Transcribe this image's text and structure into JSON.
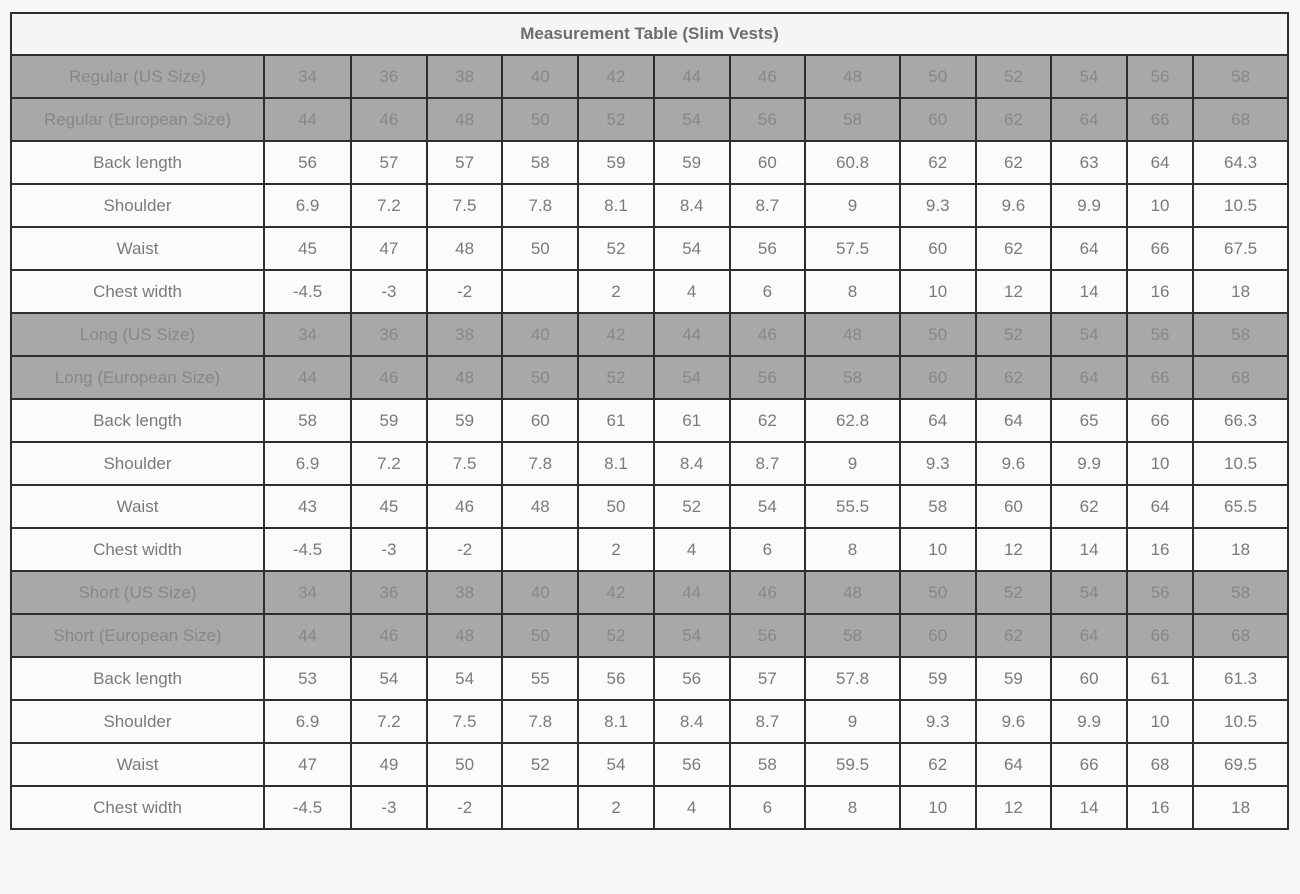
{
  "chart_data": {
    "type": "table",
    "title": "Measurement Table (Slim Vests)",
    "column_count": 14,
    "sections": [
      {
        "name": "Regular",
        "header_rows": [
          {
            "label": "Regular (US Size)",
            "values": [
              "34",
              "36",
              "38",
              "40",
              "42",
              "44",
              "46",
              "48",
              "50",
              "52",
              "54",
              "56",
              "58"
            ]
          },
          {
            "label": "Regular (European Size)",
            "values": [
              "44",
              "46",
              "48",
              "50",
              "52",
              "54",
              "56",
              "58",
              "60",
              "62",
              "64",
              "66",
              "68"
            ]
          }
        ],
        "data_rows": [
          {
            "label": "Back length",
            "values": [
              "56",
              "57",
              "57",
              "58",
              "59",
              "59",
              "60",
              "60.8",
              "62",
              "62",
              "63",
              "64",
              "64.3"
            ]
          },
          {
            "label": "Shoulder",
            "values": [
              "6.9",
              "7.2",
              "7.5",
              "7.8",
              "8.1",
              "8.4",
              "8.7",
              "9",
              "9.3",
              "9.6",
              "9.9",
              "10",
              "10.5"
            ]
          },
          {
            "label": "Waist",
            "values": [
              "45",
              "47",
              "48",
              "50",
              "52",
              "54",
              "56",
              "57.5",
              "60",
              "62",
              "64",
              "66",
              "67.5"
            ]
          },
          {
            "label": "Chest width",
            "values": [
              "-4.5",
              "-3",
              "-2",
              "",
              "2",
              "4",
              "6",
              "8",
              "10",
              "12",
              "14",
              "16",
              "18"
            ]
          }
        ]
      },
      {
        "name": "Long",
        "header_rows": [
          {
            "label": "Long (US Size)",
            "values": [
              "34",
              "36",
              "38",
              "40",
              "42",
              "44",
              "46",
              "48",
              "50",
              "52",
              "54",
              "56",
              "58"
            ]
          },
          {
            "label": "Long (European Size)",
            "values": [
              "44",
              "46",
              "48",
              "50",
              "52",
              "54",
              "56",
              "58",
              "60",
              "62",
              "64",
              "66",
              "68"
            ]
          }
        ],
        "data_rows": [
          {
            "label": "Back length",
            "values": [
              "58",
              "59",
              "59",
              "60",
              "61",
              "61",
              "62",
              "62.8",
              "64",
              "64",
              "65",
              "66",
              "66.3"
            ]
          },
          {
            "label": "Shoulder",
            "values": [
              "6.9",
              "7.2",
              "7.5",
              "7.8",
              "8.1",
              "8.4",
              "8.7",
              "9",
              "9.3",
              "9.6",
              "9.9",
              "10",
              "10.5"
            ]
          },
          {
            "label": "Waist",
            "values": [
              "43",
              "45",
              "46",
              "48",
              "50",
              "52",
              "54",
              "55.5",
              "58",
              "60",
              "62",
              "64",
              "65.5"
            ]
          },
          {
            "label": "Chest width",
            "values": [
              "-4.5",
              "-3",
              "-2",
              "",
              "2",
              "4",
              "6",
              "8",
              "10",
              "12",
              "14",
              "16",
              "18"
            ]
          }
        ]
      },
      {
        "name": "Short",
        "header_rows": [
          {
            "label": "Short (US Size)",
            "values": [
              "34",
              "36",
              "38",
              "40",
              "42",
              "44",
              "46",
              "48",
              "50",
              "52",
              "54",
              "56",
              "58"
            ]
          },
          {
            "label": "Short (European Size)",
            "values": [
              "44",
              "46",
              "48",
              "50",
              "52",
              "54",
              "56",
              "58",
              "60",
              "62",
              "64",
              "66",
              "68"
            ]
          }
        ],
        "data_rows": [
          {
            "label": "Back length",
            "values": [
              "53",
              "54",
              "54",
              "55",
              "56",
              "56",
              "57",
              "57.8",
              "59",
              "59",
              "60",
              "61",
              "61.3"
            ]
          },
          {
            "label": "Shoulder",
            "values": [
              "6.9",
              "7.2",
              "7.5",
              "7.8",
              "8.1",
              "8.4",
              "8.7",
              "9",
              "9.3",
              "9.6",
              "9.9",
              "10",
              "10.5"
            ]
          },
          {
            "label": "Waist",
            "values": [
              "47",
              "49",
              "50",
              "52",
              "54",
              "56",
              "58",
              "59.5",
              "62",
              "64",
              "66",
              "68",
              "69.5"
            ]
          },
          {
            "label": "Chest width",
            "values": [
              "-4.5",
              "-3",
              "-2",
              "",
              "2",
              "4",
              "6",
              "8",
              "10",
              "12",
              "14",
              "16",
              "18"
            ]
          }
        ]
      }
    ]
  },
  "colors": {
    "page_bg": "#f7f7f7",
    "title_bg": "#f5f5f5",
    "title_text": "#6d6d6d",
    "header_row_bg": "#a8a8a8",
    "header_row_text": "#878787",
    "data_row_bg": "#fbfbfb",
    "data_row_text": "#7a7a7a",
    "border": "#2e2e2e"
  }
}
